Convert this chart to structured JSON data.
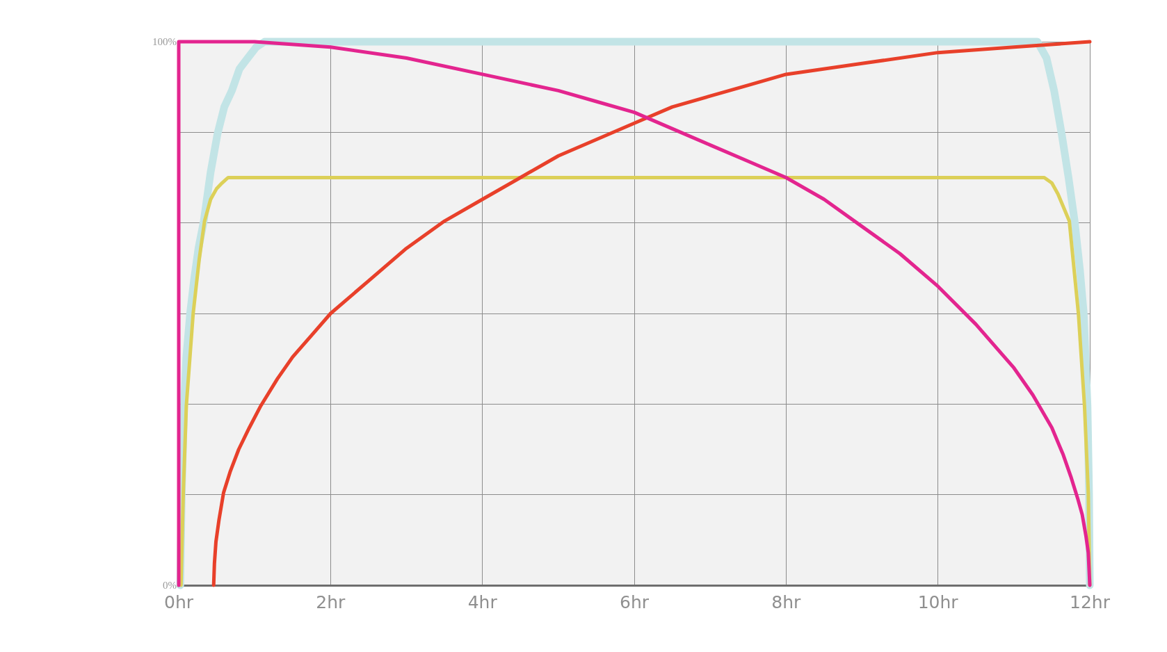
{
  "chart_data": {
    "type": "line",
    "xlim": [
      0,
      12
    ],
    "xticks": [
      {
        "value": 0,
        "label": "0hr"
      },
      {
        "value": 2,
        "label": "2hr"
      },
      {
        "value": 4,
        "label": "4hr"
      },
      {
        "value": 6,
        "label": "6hr"
      },
      {
        "value": 8,
        "label": "8hr"
      },
      {
        "value": 10,
        "label": "10hr"
      },
      {
        "value": 12,
        "label": "12hr"
      }
    ],
    "ylim": [
      0,
      100
    ],
    "yticks": [
      {
        "value": 0,
        "label": "0%"
      },
      {
        "value": 16.7,
        "label": null
      },
      {
        "value": 33.3,
        "label": null
      },
      {
        "value": 50,
        "label": null
      },
      {
        "value": 66.7,
        "label": null
      },
      {
        "value": 83.3,
        "label": null
      },
      {
        "value": 100,
        "label": "100%"
      }
    ],
    "grid": true,
    "marker": "none",
    "line_style": "solid",
    "series": [
      {
        "color": "#c2e4e6",
        "x": [
          0.02,
          0.04,
          0.07,
          0.1,
          0.15,
          0.2,
          0.26,
          0.33,
          0.42,
          0.51,
          0.6,
          0.7,
          0.8,
          0.91,
          1.02,
          1.13,
          11.31,
          11.43,
          11.53,
          11.63,
          11.72,
          11.8,
          11.87,
          11.92,
          11.97,
          11.99,
          12
        ],
        "values": [
          0,
          17,
          33,
          42,
          50,
          56,
          62,
          67,
          76,
          83,
          88,
          91,
          95,
          97,
          99,
          100,
          100,
          97,
          91,
          83,
          75,
          67,
          58,
          50,
          33,
          17,
          0
        ]
      },
      {
        "color": "#dcd058",
        "x": [
          0.03,
          0.06,
          0.1,
          0.19,
          0.27,
          0.34,
          0.42,
          0.5,
          0.57,
          0.65,
          11.4,
          11.5,
          11.58,
          11.73,
          11.85,
          11.93,
          11.98,
          12
        ],
        "values": [
          0,
          17,
          33,
          50,
          60,
          67,
          71,
          73,
          74,
          75,
          75,
          74,
          72,
          67,
          50,
          33,
          17,
          0
        ]
      },
      {
        "color": "#e8402a",
        "x": [
          0.46,
          0.47,
          0.49,
          0.53,
          0.59,
          0.68,
          0.79,
          0.93,
          1.08,
          1.3,
          1.5,
          1.75,
          2,
          2.5,
          3,
          3.5,
          4,
          4.5,
          5,
          5.5,
          6,
          6.5,
          7,
          7.5,
          8,
          9,
          10,
          11,
          12
        ],
        "values": [
          0,
          4,
          8,
          12,
          17,
          21,
          25,
          29,
          33,
          38,
          42,
          46,
          50,
          56,
          62,
          67,
          71,
          75,
          79,
          82,
          85,
          88,
          90,
          92,
          94,
          96,
          98,
          99,
          100
        ]
      },
      {
        "color": "#e3258f",
        "x": [
          0,
          0,
          1,
          2,
          3,
          4,
          5,
          5.5,
          6,
          6.5,
          7,
          7.5,
          8,
          8.5,
          9,
          9.5,
          10,
          10.5,
          11,
          11.25,
          11.5,
          11.65,
          11.75,
          11.84,
          11.9,
          11.95,
          11.98,
          12
        ],
        "values": [
          0,
          100,
          100,
          99,
          97,
          94,
          91,
          89,
          87,
          84,
          81,
          78,
          75,
          71,
          66,
          61,
          55,
          48,
          40,
          35,
          29,
          24,
          20,
          16,
          13,
          9,
          6,
          0
        ]
      }
    ]
  }
}
